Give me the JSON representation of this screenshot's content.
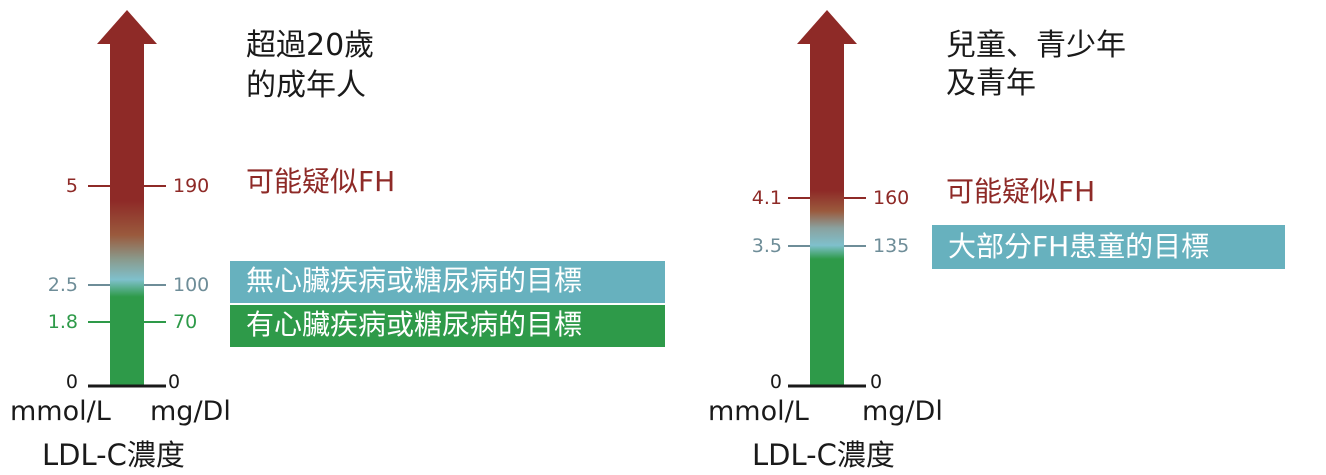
{
  "colors": {
    "dark_red": "#8e2a27",
    "green": "#2e9a49",
    "teal": "#67b1be",
    "gray_blue": "#6e8d98",
    "black": "#1a1a1a",
    "white": "#ffffff"
  },
  "adults": {
    "title_line1": "超過20歲",
    "title_line2": "的成年人",
    "ticks": [
      {
        "mmol": "5",
        "mgdl": "190",
        "color": "#8e2a27"
      },
      {
        "mmol": "2.5",
        "mgdl": "100",
        "color": "#6e8d98"
      },
      {
        "mmol": "1.8",
        "mgdl": "70",
        "color": "#2e9a49"
      },
      {
        "mmol": "0",
        "mgdl": "0",
        "color": "#1a1a1a"
      }
    ],
    "fh_label": "可能疑似FH",
    "target_no_heart": "無心臟疾病或糖尿病的目標",
    "target_heart": "有心臟疾病或糖尿病的目標",
    "unit_left": "mmol/L",
    "unit_right": "mg/Dl",
    "axis_title": "LDL-C濃度"
  },
  "children": {
    "title_line1": "兒童、青少年",
    "title_line2": "及青年",
    "ticks": [
      {
        "mmol": "4.1",
        "mgdl": "160",
        "color": "#8e2a27"
      },
      {
        "mmol": "3.5",
        "mgdl": "135",
        "color": "#6e8d98"
      },
      {
        "mmol": "0",
        "mgdl": "0",
        "color": "#1a1a1a"
      }
    ],
    "fh_label": "可能疑似FH",
    "target": "大部分FH患童的目標",
    "unit_left": "mmol/L",
    "unit_right": "mg/Dl",
    "axis_title": "LDL-C濃度"
  }
}
